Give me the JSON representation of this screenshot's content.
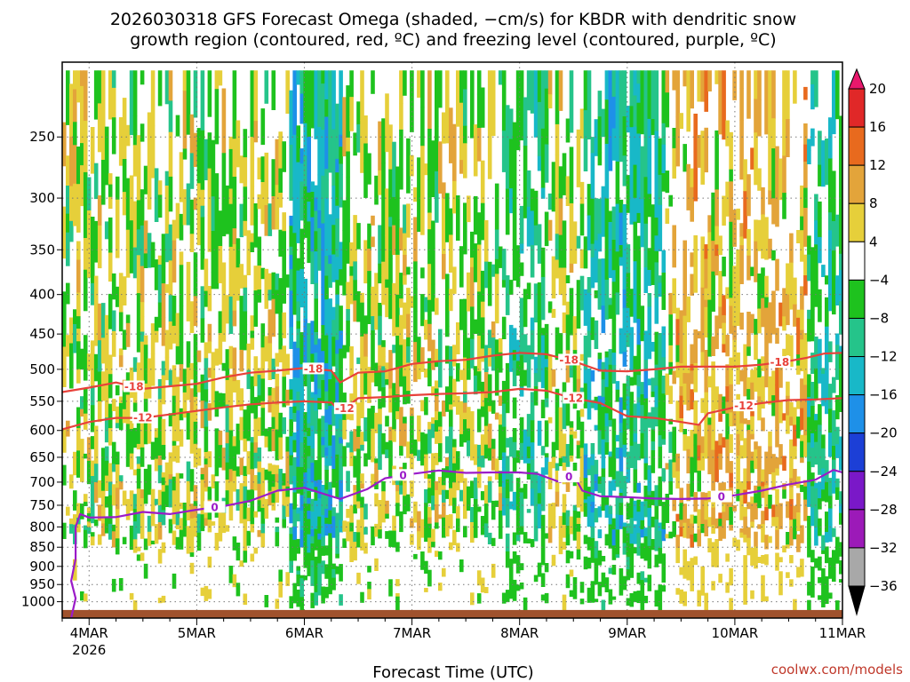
{
  "chart_data": {
    "type": "heatmap",
    "title_line1": "2026030318 GFS Forecast Omega (shaded, −cm/s) for KBDR with dendritic snow",
    "title_line2": "growth region (contoured, red, ºC) and freezing level (contoured, purple, ºC)",
    "xlabel": "Forecast Time (UTC)",
    "ylabel": "",
    "credit": "coolwx.com/models",
    "x_start_hours": -6,
    "x_end_hours": 168,
    "x_ticks": [
      {
        "hours": 0,
        "label": "4MAR",
        "sublabel": "2026"
      },
      {
        "hours": 24,
        "label": "5MAR",
        "sublabel": ""
      },
      {
        "hours": 48,
        "label": "6MAR",
        "sublabel": ""
      },
      {
        "hours": 72,
        "label": "7MAR",
        "sublabel": ""
      },
      {
        "hours": 96,
        "label": "8MAR",
        "sublabel": ""
      },
      {
        "hours": 120,
        "label": "9MAR",
        "sublabel": ""
      },
      {
        "hours": 144,
        "label": "10MAR",
        "sublabel": ""
      },
      {
        "hours": 168,
        "label": "11MAR",
        "sublabel": ""
      }
    ],
    "y_axis_hpa": {
      "top": 200,
      "bottom": 1050,
      "scale": "log-pressure",
      "ticks": [
        250,
        300,
        350,
        400,
        450,
        500,
        550,
        600,
        650,
        700,
        750,
        800,
        850,
        900,
        950,
        1000
      ]
    },
    "colorbar": {
      "levels": [
        20,
        16,
        12,
        8,
        4,
        -4,
        -8,
        -12,
        -16,
        -20,
        -24,
        -28,
        -32,
        -36
      ],
      "colors": [
        "#e8186c",
        "#e02828",
        "#e86a1e",
        "#e3a43a",
        "#e6cf3a",
        "#ffffff",
        "#1ec21e",
        "#25c48a",
        "#18b8c8",
        "#1e90e8",
        "#1c3fd6",
        "#7a18c8",
        "#9c1ab8",
        "#a8a8a8",
        "#000000"
      ]
    },
    "contours": [
      {
        "name": "-18C dendritic top",
        "color": "#e8413a",
        "label": "-18",
        "label_hours": [
          10,
          50,
          107,
          154
        ],
        "points": [
          [
            -6,
            535
          ],
          [
            0,
            528
          ],
          [
            6,
            520
          ],
          [
            12,
            530
          ],
          [
            18,
            526
          ],
          [
            24,
            522
          ],
          [
            30,
            512
          ],
          [
            36,
            505
          ],
          [
            42,
            502
          ],
          [
            48,
            498
          ],
          [
            54,
            502
          ],
          [
            56,
            520
          ],
          [
            60,
            505
          ],
          [
            66,
            503
          ],
          [
            72,
            492
          ],
          [
            78,
            488
          ],
          [
            84,
            486
          ],
          [
            90,
            480
          ],
          [
            96,
            476
          ],
          [
            102,
            478
          ],
          [
            108,
            488
          ],
          [
            114,
            502
          ],
          [
            120,
            503
          ],
          [
            126,
            500
          ],
          [
            132,
            496
          ],
          [
            138,
            496
          ],
          [
            144,
            496
          ],
          [
            150,
            493
          ],
          [
            156,
            488
          ],
          [
            160,
            483
          ],
          [
            164,
            477
          ],
          [
            168,
            476
          ],
          [
            170,
            476
          ]
        ]
      },
      {
        "name": "-12C dendritic bottom",
        "color": "#e8413a",
        "label": "-12",
        "label_hours": [
          12,
          57,
          108,
          146
        ],
        "points": [
          [
            -6,
            598
          ],
          [
            0,
            585
          ],
          [
            6,
            578
          ],
          [
            12,
            578
          ],
          [
            18,
            572
          ],
          [
            24,
            566
          ],
          [
            30,
            560
          ],
          [
            36,
            555
          ],
          [
            42,
            552
          ],
          [
            48,
            550
          ],
          [
            54,
            552
          ],
          [
            56,
            568
          ],
          [
            60,
            545
          ],
          [
            66,
            543
          ],
          [
            72,
            540
          ],
          [
            78,
            538
          ],
          [
            84,
            537
          ],
          [
            90,
            535
          ],
          [
            96,
            530
          ],
          [
            102,
            533
          ],
          [
            108,
            545
          ],
          [
            114,
            553
          ],
          [
            120,
            575
          ],
          [
            126,
            578
          ],
          [
            132,
            585
          ],
          [
            136,
            590
          ],
          [
            138,
            570
          ],
          [
            144,
            560
          ],
          [
            150,
            553
          ],
          [
            156,
            548
          ],
          [
            162,
            547
          ],
          [
            168,
            545
          ],
          [
            170,
            545
          ]
        ]
      },
      {
        "name": "0C freezing level",
        "color": "#9b1bc8",
        "label": "0",
        "label_hours": [
          28,
          70,
          107,
          141
        ],
        "points": [
          [
            -4,
            1050
          ],
          [
            -3,
            990
          ],
          [
            -4,
            940
          ],
          [
            -3,
            880
          ],
          [
            -3,
            800
          ],
          [
            -2,
            770
          ],
          [
            0,
            778
          ],
          [
            6,
            777
          ],
          [
            12,
            765
          ],
          [
            18,
            770
          ],
          [
            24,
            760
          ],
          [
            30,
            752
          ],
          [
            36,
            740
          ],
          [
            42,
            718
          ],
          [
            48,
            712
          ],
          [
            54,
            730
          ],
          [
            56,
            736
          ],
          [
            62,
            715
          ],
          [
            66,
            692
          ],
          [
            72,
            683
          ],
          [
            78,
            676
          ],
          [
            84,
            681
          ],
          [
            90,
            680
          ],
          [
            96,
            680
          ],
          [
            100,
            683
          ],
          [
            102,
            690
          ],
          [
            105,
            700
          ],
          [
            108,
            684
          ],
          [
            110,
            718
          ],
          [
            114,
            730
          ],
          [
            120,
            732
          ],
          [
            126,
            735
          ],
          [
            132,
            736
          ],
          [
            138,
            735
          ],
          [
            144,
            728
          ],
          [
            150,
            718
          ],
          [
            156,
            705
          ],
          [
            162,
            695
          ],
          [
            166,
            675
          ],
          [
            168,
            680
          ],
          [
            170,
            682
          ]
        ]
      }
    ]
  }
}
